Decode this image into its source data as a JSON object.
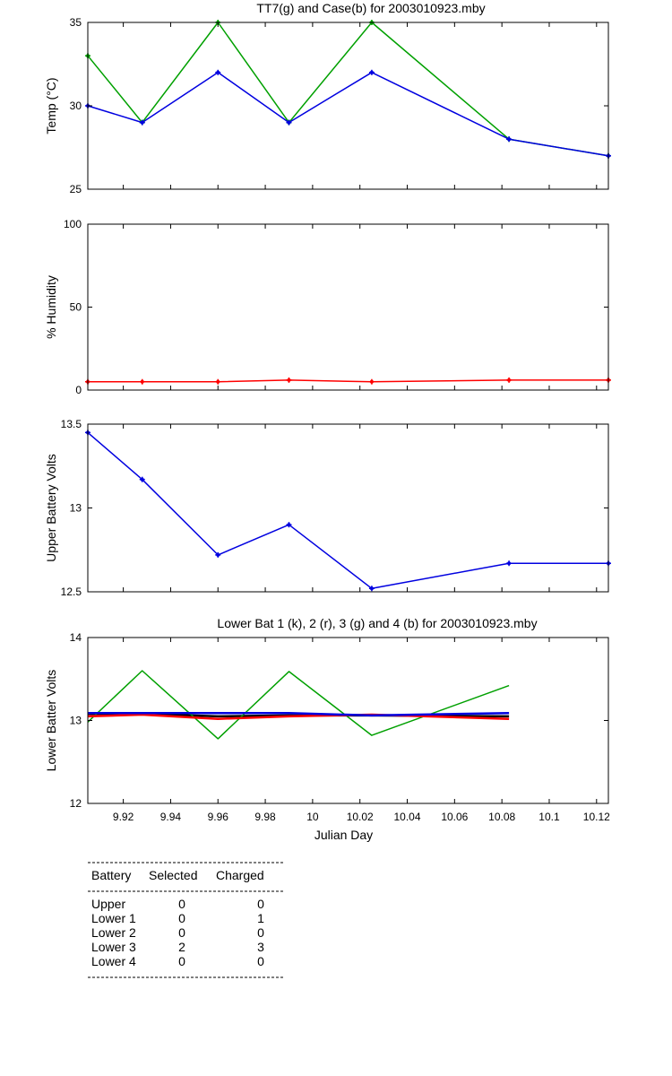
{
  "chart_data": [
    {
      "type": "line",
      "title": "TT7(g) and Case(b) for 2003010923.mby",
      "ylabel": "Temp  (°C)",
      "xlim": [
        9.905,
        10.125
      ],
      "ylim": [
        25,
        35
      ],
      "yticks": [
        25,
        30,
        35
      ],
      "markers": true,
      "series": [
        {
          "color": "#00a000",
          "x": [
            9.905,
            9.928,
            9.96,
            9.99,
            10.025,
            10.083,
            10.125
          ],
          "values": [
            33,
            29,
            35,
            29,
            35,
            28,
            27
          ]
        },
        {
          "color": "#0000e0",
          "x": [
            9.905,
            9.928,
            9.96,
            9.99,
            10.025,
            10.083,
            10.125
          ],
          "values": [
            30,
            29,
            32,
            29,
            32,
            28,
            27
          ]
        }
      ]
    },
    {
      "type": "line",
      "title": "",
      "ylabel": "% Humidity",
      "xlim": [
        9.905,
        10.125
      ],
      "ylim": [
        0,
        100
      ],
      "yticks": [
        0,
        50,
        100
      ],
      "markers": true,
      "series": [
        {
          "color": "#ff0000",
          "x": [
            9.905,
            9.928,
            9.96,
            9.99,
            10.025,
            10.083,
            10.125
          ],
          "values": [
            5,
            5,
            5,
            6,
            5,
            6,
            6
          ]
        }
      ]
    },
    {
      "type": "line",
      "title": "",
      "ylabel": "Upper Battery Volts",
      "xlim": [
        9.905,
        10.125
      ],
      "ylim": [
        12.5,
        13.5
      ],
      "yticks": [
        12.5,
        13,
        13.5
      ],
      "markers": true,
      "series": [
        {
          "color": "#0000e0",
          "x": [
            9.905,
            9.928,
            9.96,
            9.99,
            10.025,
            10.083,
            10.125
          ],
          "values": [
            13.45,
            13.17,
            12.72,
            12.9,
            12.52,
            12.67,
            12.67
          ]
        }
      ]
    },
    {
      "type": "line",
      "title": "Lower Bat 1 (k), 2 (r), 3 (g) and 4 (b) for 2003010923.mby",
      "ylabel": "Lower Batter Volts",
      "xlabel": "Julian Day",
      "xlim": [
        9.905,
        10.125
      ],
      "ylim": [
        12,
        14
      ],
      "yticks": [
        12,
        13,
        14
      ],
      "xticks": [
        "9.92",
        "9.94",
        "9.96",
        "9.98",
        "10",
        "10.02",
        "10.04",
        "10.06",
        "10.08",
        "10.1",
        "10.12"
      ],
      "markers": false,
      "series": [
        {
          "color": "#000000",
          "width": 2.5,
          "x": [
            9.905,
            9.928,
            9.96,
            9.99,
            10.025,
            10.083
          ],
          "values": [
            13.08,
            13.08,
            13.05,
            13.06,
            13.06,
            13.05
          ]
        },
        {
          "color": "#00a000",
          "width": 1.5,
          "x": [
            9.905,
            9.928,
            9.96,
            9.99,
            10.025,
            10.083
          ],
          "values": [
            12.98,
            13.6,
            12.78,
            13.59,
            12.82,
            13.42
          ]
        },
        {
          "color": "#ff0000",
          "width": 2.5,
          "x": [
            9.905,
            9.928,
            9.96,
            9.99,
            10.025,
            10.083
          ],
          "values": [
            13.05,
            13.07,
            13.02,
            13.05,
            13.07,
            13.02
          ]
        },
        {
          "color": "#0000e0",
          "width": 2.5,
          "x": [
            9.905,
            9.928,
            9.96,
            9.99,
            10.025,
            10.083
          ],
          "values": [
            13.09,
            13.09,
            13.09,
            13.09,
            13.06,
            13.09
          ]
        }
      ]
    }
  ],
  "battery_table": {
    "headers": [
      "Battery",
      "Selected",
      "Charged"
    ],
    "rows": [
      [
        "Upper",
        "0",
        "0"
      ],
      [
        "Lower 1",
        "0",
        "1"
      ],
      [
        "Lower 2",
        "0",
        "0"
      ],
      [
        "Lower 3",
        "2",
        "3"
      ],
      [
        "Lower 4",
        "0",
        "0"
      ]
    ]
  }
}
